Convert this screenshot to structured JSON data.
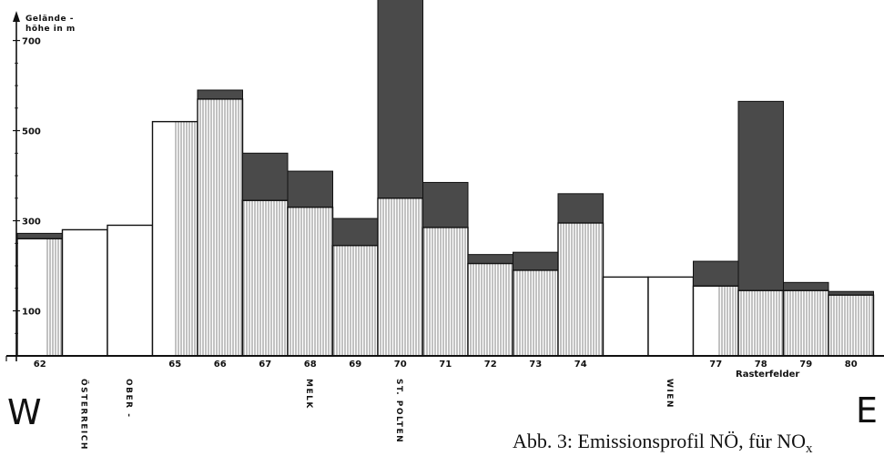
{
  "chart_data": {
    "type": "bar",
    "ylabel_lines": [
      "Gelände -",
      "höhe in   m"
    ],
    "yticks": [
      100,
      300,
      500,
      700
    ],
    "ylim": [
      0,
      790
    ],
    "xlabel": "Rasterfelder",
    "categories": [
      "62",
      "",
      "",
      "65",
      "66",
      "67",
      "68",
      "69",
      "70",
      "71",
      "72",
      "73",
      "74",
      "",
      "",
      "77",
      "78",
      "79",
      "80"
    ],
    "terrain": [
      260,
      280,
      290,
      520,
      570,
      345,
      330,
      245,
      350,
      285,
      205,
      190,
      295,
      175,
      175,
      155,
      145,
      145,
      135
    ],
    "emission": [
      12,
      0,
      0,
      0,
      20,
      105,
      80,
      60,
      460,
      100,
      20,
      40,
      65,
      0,
      0,
      55,
      420,
      18,
      8
    ],
    "hatch_fraction": [
      0.35,
      0,
      0,
      0.5,
      1,
      1,
      1,
      1,
      1,
      1,
      1,
      1,
      1,
      0,
      0,
      0.45,
      1,
      1,
      1
    ],
    "places": [
      {
        "text": "ÖSTERREICH",
        "col": 1
      },
      {
        "text": "OBER -",
        "col": 2
      },
      {
        "text": "MELK",
        "col": 6
      },
      {
        "text": "ST. POLTEN",
        "col": 8
      },
      {
        "text": "WIEN",
        "col": 14
      }
    ]
  },
  "direction_left": "W",
  "direction_right": "E",
  "caption": "Abb. 3: Emissionsprofil NÖ, für NO",
  "caption_subscript": "x",
  "colors": {
    "line": "#111111",
    "emission": "#4a4a4a",
    "hatch": "#555555",
    "background": "#ffffff"
  }
}
